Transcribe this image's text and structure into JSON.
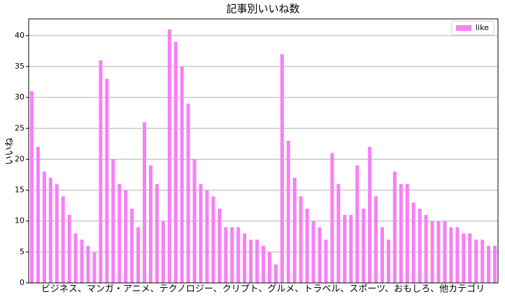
{
  "chart_data": {
    "type": "bar",
    "title": "記事別いいね数",
    "x_label": "ビジネス、マンガ・アニメ、テクノロジー、クリプト、グルメ、トラベル、スポーツ、おもしろ、他カテゴリ",
    "y_label": "いいね",
    "categories": [
      null,
      null,
      null,
      null,
      null,
      null,
      null,
      null,
      null,
      null,
      null,
      null,
      null,
      null,
      null,
      null,
      null,
      null,
      null,
      null,
      null,
      null,
      null,
      null,
      null,
      null,
      null,
      null,
      null,
      null,
      null,
      null,
      null,
      null,
      null,
      null,
      null,
      null,
      null,
      null,
      null,
      null,
      null,
      null,
      null,
      null,
      null,
      null,
      null,
      null,
      null,
      null,
      null,
      null,
      null,
      null,
      null,
      null,
      null,
      null,
      null,
      null,
      null,
      null,
      null,
      null,
      null,
      null,
      null,
      null,
      null,
      null,
      null,
      null,
      null
    ],
    "series": [
      {
        "name": "like",
        "color": "#f77ff7",
        "values": [
          31,
          22,
          18,
          17,
          16,
          14,
          11,
          8,
          7,
          6,
          5,
          36,
          33,
          20,
          16,
          15,
          12,
          9,
          26,
          19,
          16,
          10,
          41,
          39,
          35,
          29,
          20,
          16,
          15,
          14,
          12,
          9,
          9,
          9,
          8,
          7,
          7,
          6,
          5,
          3,
          37,
          23,
          17,
          14,
          12,
          10,
          9,
          7,
          21,
          16,
          11,
          11,
          19,
          12,
          22,
          14,
          9,
          7,
          18,
          16,
          16,
          13,
          12,
          11,
          10,
          10,
          10,
          9,
          9,
          8,
          8,
          7,
          7,
          6,
          6
        ]
      }
    ],
    "ylim": [
      0,
      42.7
    ],
    "yticks": [
      0,
      5,
      10,
      15,
      20,
      25,
      30,
      35,
      40
    ],
    "grid": true,
    "legend": "upper right"
  }
}
